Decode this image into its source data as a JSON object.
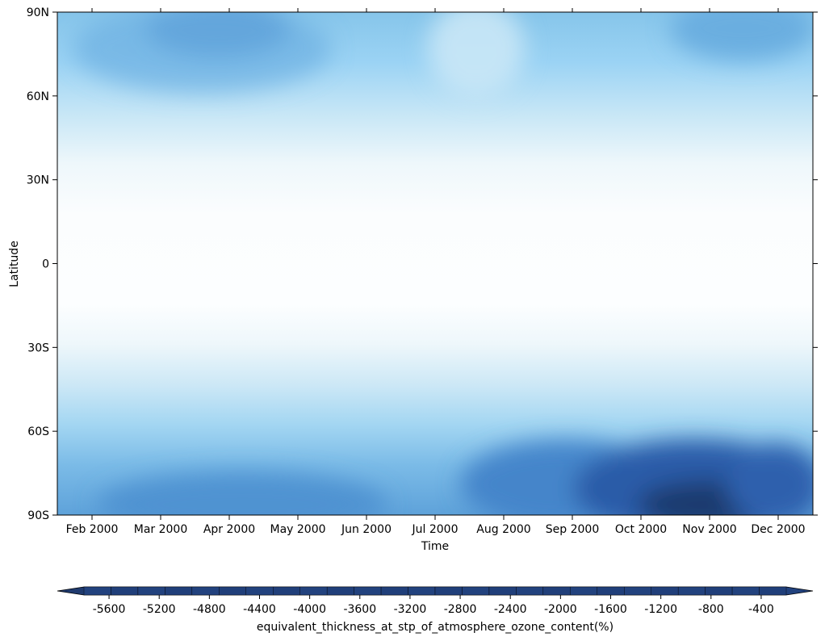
{
  "chart_data": {
    "type": "heatmap",
    "title": "",
    "xlabel": "Time",
    "ylabel": "Latitude",
    "x_ticks": [
      "Feb 2000",
      "Mar 2000",
      "Apr 2000",
      "May 2000",
      "Jun 2000",
      "Jul 2000",
      "Aug 2000",
      "Sep 2000",
      "Oct 2000",
      "Nov 2000",
      "Dec 2000"
    ],
    "y_ticks": [
      "90N",
      "60N",
      "30N",
      "0",
      "30S",
      "60S",
      "90S"
    ],
    "y_range": [
      -90,
      90
    ],
    "colorbar": {
      "label": "equivalent_thickness_at_stp_of_atmosphere_ozone_content(%)",
      "tick_labels": [
        "-5600",
        "-5200",
        "-4800",
        "-4400",
        "-4000",
        "-3600",
        "-3200",
        "-2800",
        "-2400",
        "-2000",
        "-1600",
        "-1200",
        "-800",
        "-400"
      ],
      "range": [
        -5800,
        -200
      ],
      "extend": "both",
      "colors": [
        "#1f3a6e",
        "#22427e",
        "#254b8c",
        "#28539a",
        "#2b5ca8",
        "#3268b4",
        "#3b76c0",
        "#4585ca",
        "#5194d3",
        "#5ea2da",
        "#6cafe1",
        "#7bbbe7",
        "#8bc6ee",
        "#9cd4f5",
        "#b2def7",
        "#c7e6f6",
        "#dbeff8",
        "#ebf6fb",
        "#f5fafd",
        "#fcfeff"
      ]
    },
    "legend_position": "bottom",
    "grid": false
  }
}
